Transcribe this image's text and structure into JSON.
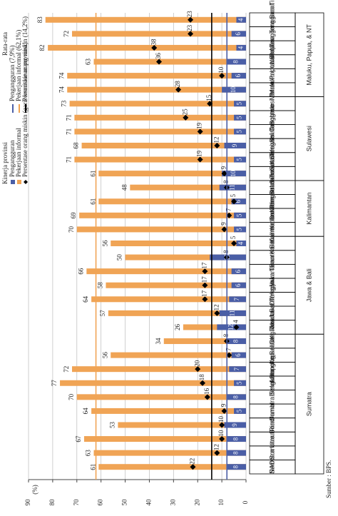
{
  "chart_data": {
    "type": "bar",
    "y_label": "(%)",
    "categories": [
      "NAD",
      "Sumatra Utara",
      "Sumatra Barat",
      "Riau",
      "Jambi",
      "Sumatra Selatan",
      "Bengkulu",
      "Lampung",
      "Bangka Belitung",
      "Kepulauan Riau",
      "DKI Jakarta",
      "Jawa Barat",
      "Jawa Tengah",
      "DI Yogyakarta",
      "Jawa Timur",
      "Banten",
      "Bali",
      "Kalimantan Barat",
      "Kalimantan Tengah",
      "Kalimantan Selatan",
      "Kalimantan Timur",
      "Sulawesi Utara",
      "Sulawesi Tengah",
      "Sulawesi Selatan",
      "Sulawesi Tenggara",
      "Gorontalo",
      "Sulawesi Barat",
      "Maluku",
      "Maluku Utara",
      "Papua Barat",
      "Papua",
      "Nusa Tenggara Barat",
      "Nusa Tenggara Timur"
    ],
    "groups": [
      {
        "name": "Sumatra",
        "size": 10
      },
      {
        "name": "Jawa & Bali",
        "size": 7
      },
      {
        "name": "Kalimantan",
        "size": 4
      },
      {
        "name": "Sulawesi",
        "size": 6
      },
      {
        "name": "Maluku, Papua, & NT",
        "size": 6
      }
    ],
    "legend_title": "Kinerja provinsi",
    "series": [
      {
        "name": "Pekerjaan informal",
        "color": "#f0a455",
        "marker": "bar",
        "values": [
          61,
          63,
          67,
          53,
          64,
          70,
          77,
          72,
          56,
          34,
          26,
          57,
          64,
          58,
          66,
          50,
          56,
          70,
          69,
          61,
          48,
          61,
          71,
          68,
          71,
          71,
          73,
          74,
          74,
          63,
          82,
          72,
          83
        ]
      },
      {
        "name": "Pengangguran",
        "color": "#4a5ea6",
        "marker": "bar",
        "values": [
          8,
          8,
          8,
          9,
          5,
          8,
          5,
          7,
          6,
          8,
          12,
          11,
          7,
          6,
          6,
          15,
          4,
          5,
          5,
          6,
          11,
          10,
          5,
          9,
          5,
          5,
          5,
          10,
          6,
          8,
          4,
          6,
          4
        ]
      },
      {
        "name": "Persentase orang miskin (garis kemiskinan provinsi)",
        "color": "#000000",
        "marker": "diamond",
        "values": [
          22,
          12,
          10,
          10,
          9,
          16,
          18,
          20,
          7,
          8,
          4,
          12,
          17,
          17,
          17,
          8,
          5,
          9,
          7,
          5,
          8,
          9,
          19,
          12,
          19,
          25,
          15,
          28,
          10,
          36,
          38,
          23,
          23
        ]
      }
    ],
    "averages_title": "Rata-rata",
    "averages": [
      {
        "name": "Pengangguran (7,9%)",
        "value": 7.9,
        "color": "#4a5ea6"
      },
      {
        "name": "Pekerjaan informal (62,1%)",
        "value": 62.1,
        "color": "#f0a455"
      },
      {
        "name": "Persentase orang miskin (14,2%)",
        "value": 14.2,
        "color": "#000000"
      }
    ],
    "ylim": [
      0,
      90
    ],
    "yticks": [
      0,
      10,
      20,
      30,
      40,
      50,
      60,
      70,
      80,
      90
    ],
    "grid": true,
    "source": "Sumber : BPS."
  }
}
